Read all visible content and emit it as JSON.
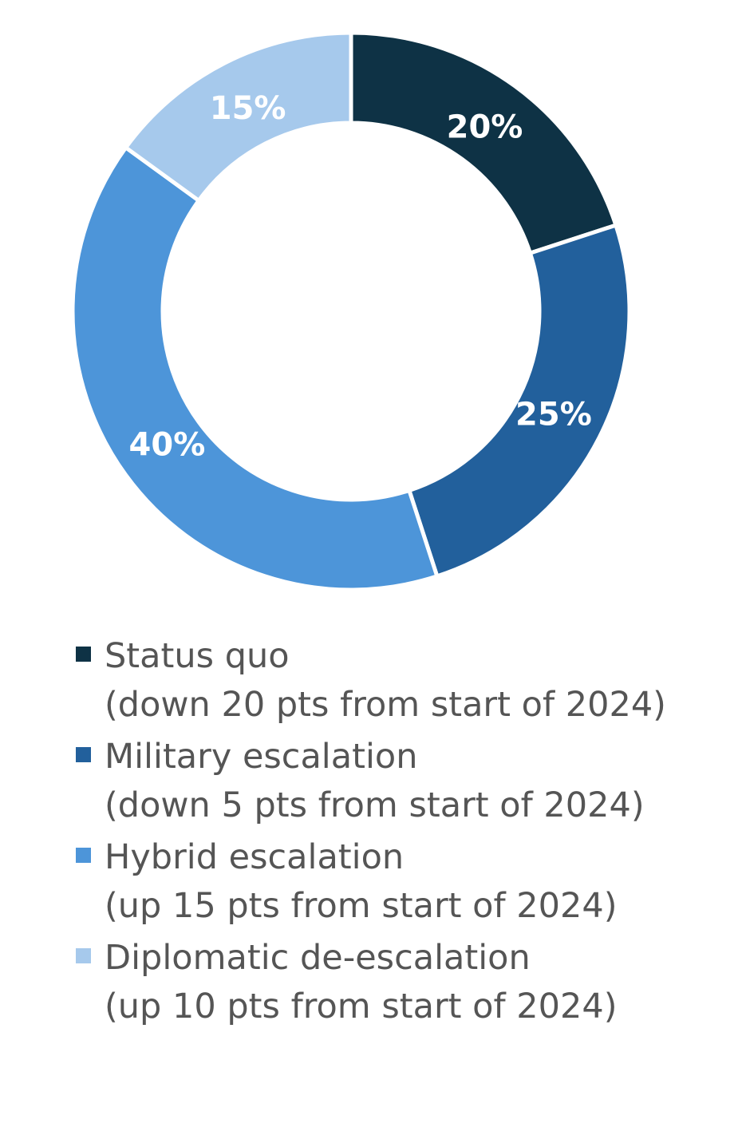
{
  "chart_data": {
    "type": "pie",
    "donut": true,
    "title": "",
    "slices": [
      {
        "label": "Status quo",
        "note": "(down 20 pts from start of 2024)",
        "value": 20,
        "display": "20%",
        "color": "#0e3245"
      },
      {
        "label": "Military escalation",
        "note": "(down 5 pts from start of 2024)",
        "value": 25,
        "display": "25%",
        "color": "#22609c"
      },
      {
        "label": "Hybrid escalation",
        "note": "(up 15 pts from start of 2024)",
        "value": 40,
        "display": "40%",
        "color": "#4d95d9"
      },
      {
        "label": "Diplomatic de-escalation",
        "note": "(up 10 pts from start of 2024)",
        "value": 15,
        "display": "15%",
        "color": "#a6c9ec"
      }
    ],
    "legend_position": "bottom"
  }
}
